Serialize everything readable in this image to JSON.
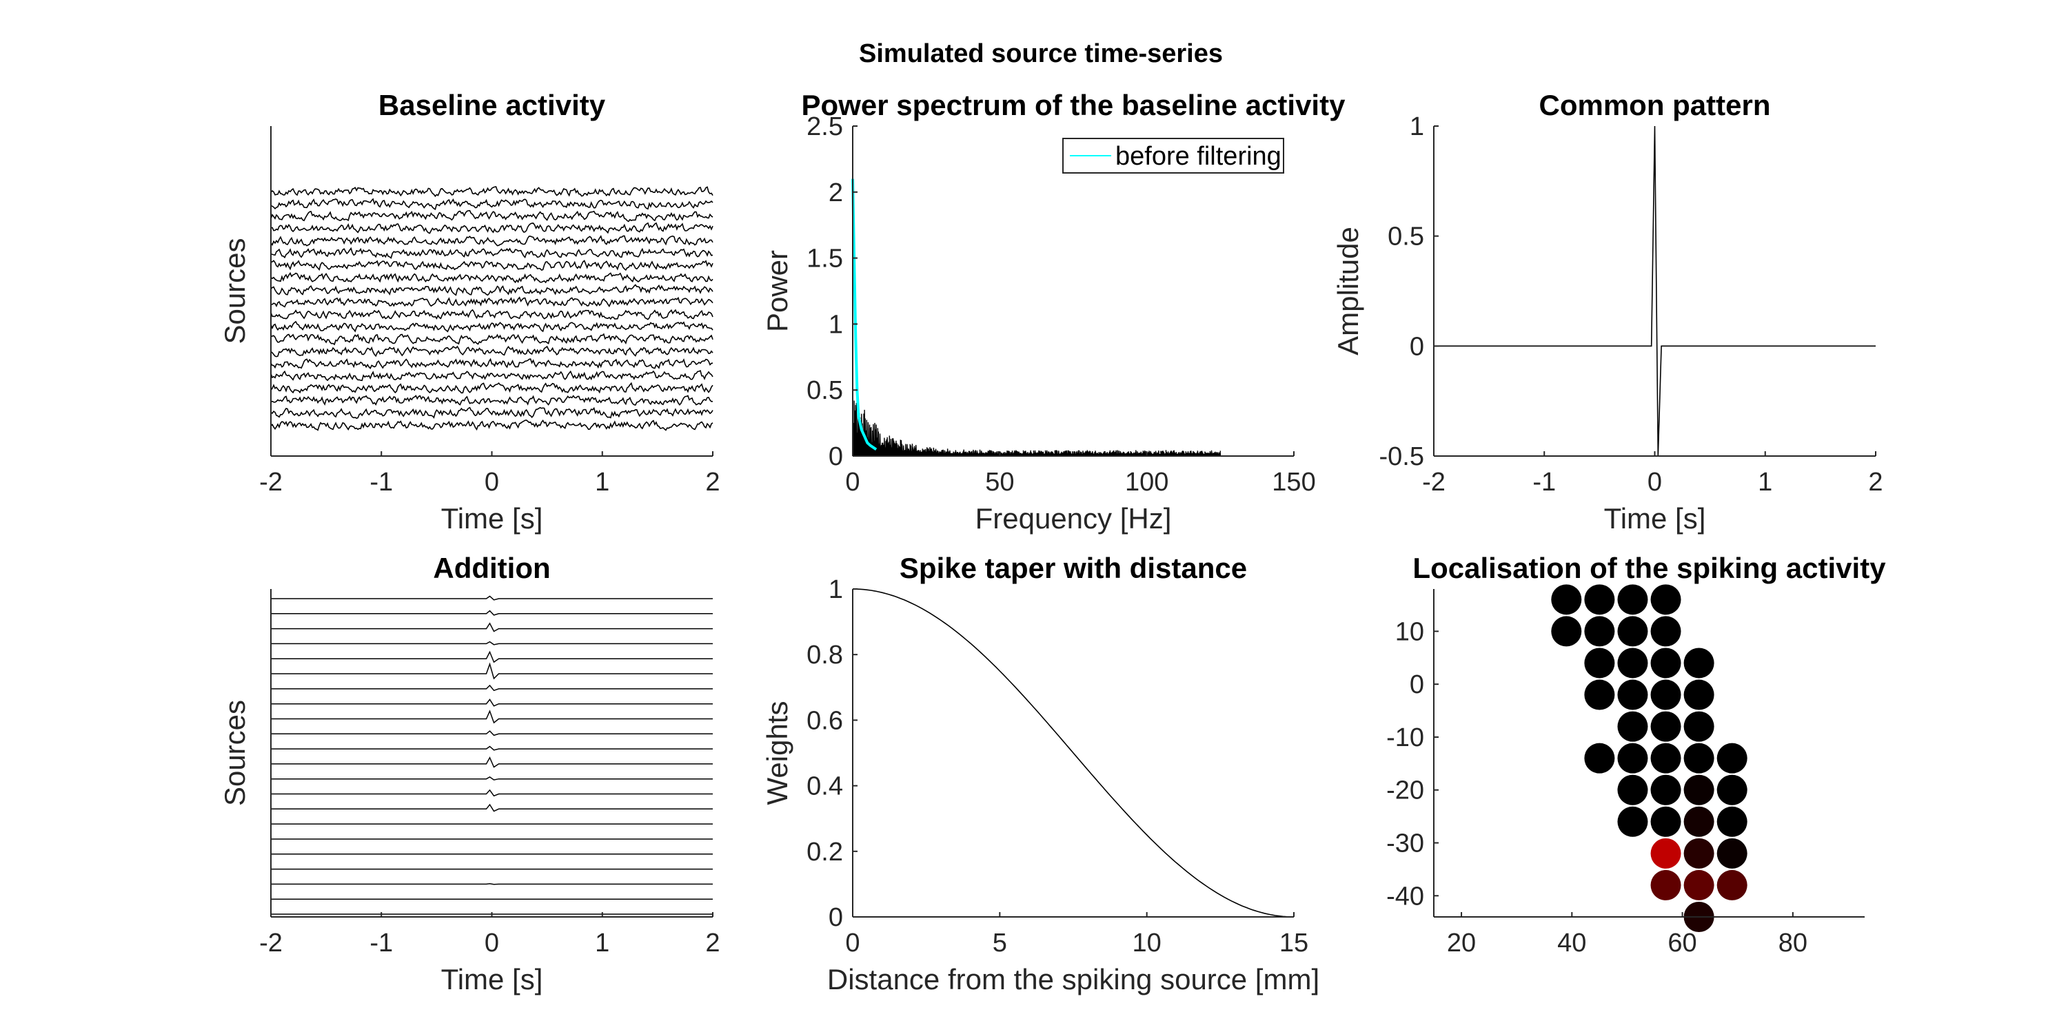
{
  "figure_title": "Simulated source time-series",
  "colors": {
    "trace": "#000000",
    "spectrum_line": "#00ffff",
    "axes": "#262626",
    "highlight": "#c00000"
  },
  "chart_data": [
    {
      "id": "baseline",
      "type": "line",
      "title": "Baseline activity",
      "xlabel": "Time [s]",
      "ylabel": "Sources",
      "xlim": [
        -2,
        2
      ],
      "xticks": [
        -2,
        -1,
        0,
        1,
        2
      ],
      "xtick_labels": [
        "-2",
        "-1",
        "0",
        "1",
        "2"
      ],
      "n_sources": 20,
      "grid": false
    },
    {
      "id": "spectrum",
      "type": "line",
      "title": "Power spectrum of the baseline activity",
      "xlabel": "Frequency [Hz]",
      "ylabel": "Power",
      "xlim": [
        0,
        150
      ],
      "ylim": [
        0,
        2.5
      ],
      "xticks": [
        0,
        50,
        100,
        150
      ],
      "xtick_labels": [
        "0",
        "50",
        "100",
        "150"
      ],
      "yticks": [
        0,
        0.5,
        1,
        1.5,
        2,
        2.5
      ],
      "ytick_labels": [
        "0",
        "0.5",
        "1",
        "1.5",
        "2",
        "2.5"
      ],
      "legend": {
        "entries": [
          "before filtering"
        ],
        "placement": "top-right"
      },
      "series": [
        {
          "name": "before filtering",
          "color": "#00ffff",
          "x": [
            0,
            0.5,
            1,
            1.5,
            2,
            3,
            4,
            5,
            6,
            8
          ],
          "y": [
            2.1,
            1.5,
            0.9,
            0.5,
            0.3,
            0.2,
            0.15,
            0.1,
            0.08,
            0.05
          ]
        }
      ],
      "baseline_spectrum_max_freq": 125,
      "grid": false
    },
    {
      "id": "pattern",
      "type": "line",
      "title": "Common pattern",
      "xlabel": "Time [s]",
      "ylabel": "Amplitude",
      "xlim": [
        -2,
        2
      ],
      "ylim": [
        -0.5,
        1
      ],
      "xticks": [
        -2,
        -1,
        0,
        1,
        2
      ],
      "xtick_labels": [
        "-2",
        "-1",
        "0",
        "1",
        "2"
      ],
      "yticks": [
        -0.5,
        0,
        0.5,
        1
      ],
      "ytick_labels": [
        "-0.5",
        "0",
        "0.5",
        "1"
      ],
      "series": [
        {
          "x": [
            -2,
            -0.03,
            0,
            0.03,
            0.06,
            2
          ],
          "y": [
            0,
            0,
            1,
            -0.5,
            0,
            0
          ]
        }
      ],
      "grid": false
    },
    {
      "id": "addition",
      "type": "line",
      "title": "Addition",
      "xlabel": "Time [s]",
      "ylabel": "Sources",
      "xlim": [
        -2,
        2
      ],
      "xticks": [
        -2,
        -1,
        0,
        1,
        2
      ],
      "xtick_labels": [
        "-2",
        "-1",
        "0",
        "1",
        "2"
      ],
      "spike_weights": [
        0.25,
        0.3,
        0.55,
        0.2,
        0.7,
        1.0,
        0.35,
        0.45,
        0.8,
        0.3,
        0.25,
        0.65,
        0.2,
        0.4,
        0.45,
        0,
        0,
        0,
        0,
        0.05,
        0,
        0
      ],
      "grid": false
    },
    {
      "id": "taper",
      "type": "line",
      "title": "Spike taper with distance",
      "xlabel": "Distance from the spiking source [mm]",
      "ylabel": "Weights",
      "xlim": [
        0,
        15
      ],
      "ylim": [
        0,
        1
      ],
      "xticks": [
        0,
        5,
        10,
        15
      ],
      "xtick_labels": [
        "0",
        "5",
        "10",
        "15"
      ],
      "yticks": [
        0,
        0.2,
        0.4,
        0.6,
        0.8,
        1
      ],
      "ytick_labels": [
        "0",
        "0.2",
        "0.4",
        "0.6",
        "0.8",
        "1"
      ],
      "series": [
        {
          "x": [
            0,
            1.5,
            3,
            4.5,
            6,
            7.5,
            9,
            10.5,
            12,
            13.5,
            15
          ],
          "y": [
            1,
            0.976,
            0.905,
            0.794,
            0.655,
            0.5,
            0.345,
            0.206,
            0.095,
            0.024,
            0
          ]
        }
      ],
      "grid": false
    },
    {
      "id": "localisation",
      "type": "scatter",
      "title": "Localisation of the spiking activity",
      "xlim": [
        15,
        93
      ],
      "ylim": [
        -44,
        18
      ],
      "xticks": [
        20,
        40,
        60,
        80
      ],
      "xtick_labels": [
        "20",
        "40",
        "60",
        "80"
      ],
      "yticks": [
        -40,
        -30,
        -20,
        -10,
        0,
        10
      ],
      "ytick_labels": [
        "-40",
        "-30",
        "-20",
        "-10",
        "0",
        "10"
      ],
      "points": [
        {
          "x": 39,
          "y": 16,
          "w": 0
        },
        {
          "x": 45,
          "y": 16,
          "w": 0
        },
        {
          "x": 51,
          "y": 16,
          "w": 0
        },
        {
          "x": 57,
          "y": 16,
          "w": 0
        },
        {
          "x": 39,
          "y": 10,
          "w": 0
        },
        {
          "x": 45,
          "y": 10,
          "w": 0
        },
        {
          "x": 51,
          "y": 10,
          "w": 0
        },
        {
          "x": 57,
          "y": 10,
          "w": 0
        },
        {
          "x": 45,
          "y": 4,
          "w": 0
        },
        {
          "x": 51,
          "y": 4,
          "w": 0
        },
        {
          "x": 57,
          "y": 4,
          "w": 0
        },
        {
          "x": 63,
          "y": 4,
          "w": 0
        },
        {
          "x": 45,
          "y": -2,
          "w": 0
        },
        {
          "x": 51,
          "y": -2,
          "w": 0
        },
        {
          "x": 57,
          "y": -2,
          "w": 0
        },
        {
          "x": 63,
          "y": -2,
          "w": 0
        },
        {
          "x": 51,
          "y": -8,
          "w": 0
        },
        {
          "x": 57,
          "y": -8,
          "w": 0
        },
        {
          "x": 63,
          "y": -8,
          "w": 0
        },
        {
          "x": 45,
          "y": -14,
          "w": 0
        },
        {
          "x": 51,
          "y": -14,
          "w": 0
        },
        {
          "x": 57,
          "y": -14,
          "w": 0
        },
        {
          "x": 63,
          "y": -14,
          "w": 0
        },
        {
          "x": 69,
          "y": -14,
          "w": 0
        },
        {
          "x": 51,
          "y": -20,
          "w": 0
        },
        {
          "x": 57,
          "y": -20,
          "w": 0
        },
        {
          "x": 63,
          "y": -20,
          "w": 0.05
        },
        {
          "x": 69,
          "y": -20,
          "w": 0
        },
        {
          "x": 51,
          "y": -26,
          "w": 0
        },
        {
          "x": 57,
          "y": -26,
          "w": 0
        },
        {
          "x": 63,
          "y": -26,
          "w": 0.1
        },
        {
          "x": 69,
          "y": -26,
          "w": 0
        },
        {
          "x": 57,
          "y": -32,
          "w": 1
        },
        {
          "x": 63,
          "y": -32,
          "w": 0.2
        },
        {
          "x": 69,
          "y": -32,
          "w": 0.05
        },
        {
          "x": 57,
          "y": -38,
          "w": 0.5
        },
        {
          "x": 63,
          "y": -38,
          "w": 0.5
        },
        {
          "x": 69,
          "y": -38,
          "w": 0.45
        },
        {
          "x": 63,
          "y": -44,
          "w": 0.15
        }
      ],
      "grid": false
    }
  ]
}
